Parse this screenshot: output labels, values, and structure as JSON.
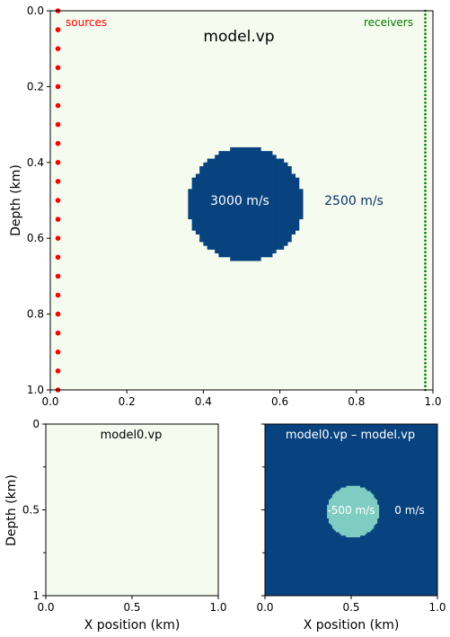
{
  "chart_data": [
    {
      "type": "heatmap",
      "title": "model.vp",
      "xlabel": "",
      "ylabel": "Depth (km)",
      "xlim": [
        0,
        1
      ],
      "ylim": [
        1,
        0
      ],
      "xticks": [
        "0.0",
        "0.2",
        "0.4",
        "0.6",
        "0.8",
        "1.0"
      ],
      "yticks": [
        "0.0",
        "0.2",
        "0.4",
        "0.6",
        "0.8",
        "1.0"
      ],
      "background_value_label": "2500 m/s",
      "anomaly": {
        "center_x": 0.51,
        "center_z": 0.51,
        "radius": 0.15,
        "label": "3000 m/s"
      },
      "colors": {
        "background": "#f6fbef",
        "anomaly": "#08427f",
        "background_label": "#08306b",
        "anomaly_label": "#ffffff"
      },
      "sources": {
        "label": "sources",
        "color": "#ff0000",
        "x": 0.02,
        "z": [
          0.0,
          0.05,
          0.1,
          0.15,
          0.2,
          0.25,
          0.3,
          0.35,
          0.4,
          0.45,
          0.5,
          0.55,
          0.6,
          0.65,
          0.7,
          0.75,
          0.8,
          0.85,
          0.9,
          0.95,
          1.0
        ]
      },
      "receivers": {
        "label": "receivers",
        "color": "#007a00",
        "x": 0.98,
        "count": 100
      }
    },
    {
      "type": "heatmap",
      "title": "model0.vp",
      "xlabel": "X position (km)",
      "ylabel": "Depth (km)",
      "xlim": [
        0,
        1
      ],
      "ylim": [
        1,
        0
      ],
      "xticks": [
        "0.0",
        "0.5",
        "1.0"
      ],
      "yticks": [
        "0",
        "0.5",
        "1"
      ],
      "colors": {
        "background": "#f6fbef"
      }
    },
    {
      "type": "heatmap",
      "title": "model0.vp – model.vp",
      "xlabel": "X position (km)",
      "ylabel": "",
      "xlim": [
        0,
        1
      ],
      "ylim": [
        1,
        0
      ],
      "xticks": [
        "0.0",
        "0.5",
        "1.0"
      ],
      "background_value_label": "0 m/s",
      "anomaly": {
        "center_x": 0.51,
        "center_z": 0.51,
        "radius": 0.15,
        "label": "-500 m/s"
      },
      "colors": {
        "background": "#08427f",
        "anomaly": "#7fcdc2",
        "label": "#ffffff"
      }
    }
  ]
}
